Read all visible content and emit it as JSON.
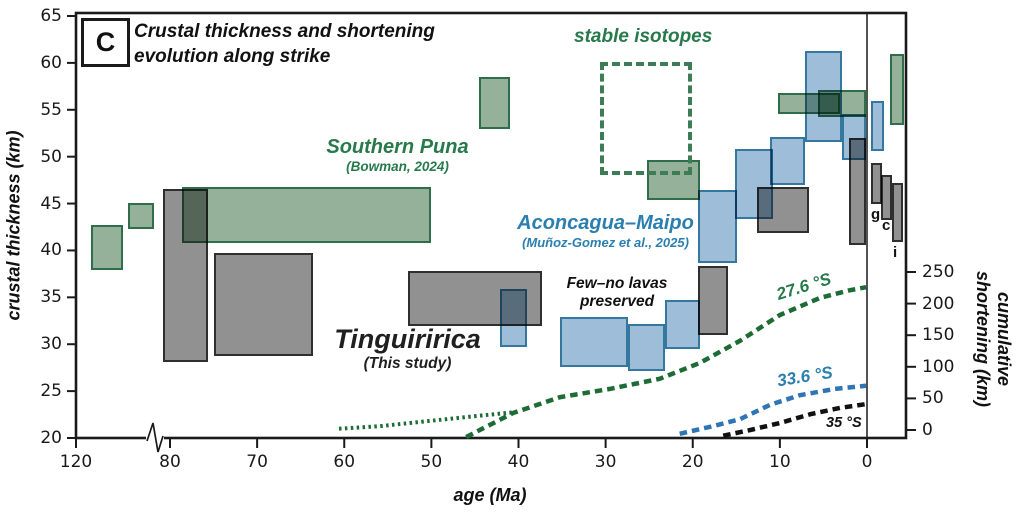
{
  "panel": {
    "label": "C",
    "title_line1": "Crustal thickness and shortening",
    "title_line2": "evolution along strike"
  },
  "axes": {
    "x": {
      "label": "age (Ma)",
      "ticks": [
        120,
        80,
        70,
        60,
        50,
        40,
        30,
        20,
        10,
        0
      ],
      "axis_break_between": [
        120,
        80
      ],
      "zero_line_at": 0
    },
    "y_left": {
      "label": "crustal thickness (km)",
      "ticks": [
        65,
        60,
        55,
        50,
        45,
        40,
        35,
        30,
        25,
        20
      ]
    },
    "y_right": {
      "label_line1": "cumulative",
      "label_line2": "shortening (km)",
      "ticks": [
        250,
        200,
        150,
        100,
        50,
        0
      ]
    }
  },
  "series": {
    "southern_puna": {
      "name": "Southern Puna",
      "ref": "(Bowman, 2024)",
      "fill": "#95b19a",
      "stroke": "#2e6e4b",
      "text_color": "#277a4b"
    },
    "aconcagua": {
      "name": "Aconcagua–Maipo",
      "ref": "(Muñoz-Gomez et al., 2025)",
      "fill": "#9dbdd8",
      "stroke": "#35789f",
      "text_color": "#2b7fae"
    },
    "tinguiririca": {
      "name": "Tinguiririca",
      "ref": "(This study)",
      "fill": "#919191",
      "stroke": "#2f2f2f",
      "text_color": "#1f1f1f"
    }
  },
  "annotations": {
    "stable_isotopes": "stable isotopes",
    "few_no_lavas_line1": "Few–no lavas",
    "few_no_lavas_line2": "preserved",
    "curve_label_puna": "27.6 °S",
    "curve_label_aconcagua": "33.6 °S",
    "curve_label_35": "35 °S",
    "modern_box_labels": [
      "g",
      "c",
      "i"
    ]
  },
  "chart_data": {
    "type": "box-ranges with cumulative-shortening dashed lines",
    "x_axis": {
      "label": "age (Ma)",
      "range": [
        120,
        0
      ],
      "broken_segment": [
        120,
        80
      ],
      "note": "boxes plotted right of the 0 Ma line are present-day estimates (negative age values)"
    },
    "y_left_axis": {
      "label": "crustal thickness (km)",
      "range": [
        20,
        65
      ]
    },
    "y_right_axis": {
      "label": "cumulative shortening (km)",
      "range": [
        0,
        250
      ]
    },
    "boxes": {
      "southern_puna": [
        {
          "age": [
            113.5,
            100
          ],
          "thickness": [
            37.9,
            42.7
          ]
        },
        {
          "age": [
            98,
            87
          ],
          "thickness": [
            42.3,
            45.1
          ]
        },
        {
          "age": [
            78.6,
            50
          ],
          "thickness": [
            40.8,
            46.8
          ]
        },
        {
          "age": [
            44.5,
            41
          ],
          "thickness": [
            53.0,
            58.5
          ]
        },
        {
          "age": [
            25.3,
            19.2
          ],
          "thickness": [
            45.4,
            49.7
          ]
        },
        {
          "age": [
            10.2,
            3.1
          ],
          "thickness": [
            54.5,
            56.8
          ]
        },
        {
          "age": [
            5.6,
            0.1
          ],
          "thickness": [
            54.2,
            57.1
          ]
        },
        {
          "age": [
            -2.6,
            -4.2
          ],
          "thickness": [
            53.4,
            60.9
          ],
          "modern": true
        }
      ],
      "tinguiririca": [
        {
          "age": [
            83,
            75.6
          ],
          "thickness": [
            28.1,
            46.6
          ]
        },
        {
          "age": [
            75,
            63.6
          ],
          "thickness": [
            28.7,
            39.7
          ]
        },
        {
          "age": [
            52.7,
            37.3
          ],
          "thickness": [
            31.9,
            37.8
          ]
        },
        {
          "age": [
            19.4,
            16
          ],
          "thickness": [
            31.0,
            38.3
          ]
        },
        {
          "age": [
            12.6,
            6.7
          ],
          "thickness": [
            41.9,
            46.8
          ]
        },
        {
          "age": [
            2.1,
            0.1
          ],
          "thickness": [
            40.6,
            52.0
          ]
        },
        {
          "age": [
            -0.5,
            -1.7
          ],
          "thickness": [
            44.9,
            49.3
          ],
          "modern": true,
          "label": "g"
        },
        {
          "age": [
            -1.6,
            -2.9
          ],
          "thickness": [
            43.3,
            48.1
          ],
          "modern": true,
          "label": "c"
        },
        {
          "age": [
            -2.9,
            -4.1
          ],
          "thickness": [
            40.9,
            47.2
          ],
          "modern": true,
          "label": "i"
        }
      ],
      "aconcagua": [
        {
          "age": [
            42.1,
            39
          ],
          "thickness": [
            29.7,
            35.9
          ]
        },
        {
          "age": [
            35.2,
            27.4
          ],
          "thickness": [
            27.6,
            32.9
          ]
        },
        {
          "age": [
            27.4,
            23.2
          ],
          "thickness": [
            27.1,
            32.2
          ]
        },
        {
          "age": [
            23.2,
            19.2
          ],
          "thickness": [
            29.5,
            34.7
          ]
        },
        {
          "age": [
            19.4,
            14.9
          ],
          "thickness": [
            38.7,
            46.5
          ]
        },
        {
          "age": [
            15.2,
            10.8
          ],
          "thickness": [
            43.3,
            50.8
          ]
        },
        {
          "age": [
            11.1,
            7.1
          ],
          "thickness": [
            47.0,
            52.1
          ]
        },
        {
          "age": [
            7.1,
            2.9
          ],
          "thickness": [
            51.6,
            61.3
          ]
        },
        {
          "age": [
            2.9,
            0.1
          ],
          "thickness": [
            49.7,
            54.6
          ]
        },
        {
          "age": [
            -0.5,
            -2.0
          ],
          "thickness": [
            50.6,
            55.9
          ],
          "modern": true
        }
      ]
    },
    "stable_isotopes_box": {
      "age": [
        30.7,
        20.1
      ],
      "thickness": [
        48.0,
        60.1
      ]
    },
    "shortening_curves": [
      {
        "name": "Southern Puna uncertain (dotted)",
        "latitude": "27.6 °S",
        "color": "#1d6b35",
        "style": "dotted",
        "points": [
          [
            60.6,
            2
          ],
          [
            55.9,
            6
          ],
          [
            50.5,
            14
          ],
          [
            45.6,
            21
          ],
          [
            40.6,
            28
          ]
        ]
      },
      {
        "name": "Southern Puna 27.6 °S",
        "latitude": "27.6 °S",
        "color": "#1d6b35",
        "style": "dashed",
        "points": [
          [
            46,
            -11
          ],
          [
            40.6,
            27
          ],
          [
            35.2,
            52
          ],
          [
            29.5,
            65
          ],
          [
            23.8,
            81
          ],
          [
            19.2,
            106
          ],
          [
            14.6,
            141
          ],
          [
            10,
            182
          ],
          [
            5.4,
            209
          ],
          [
            2,
            221
          ],
          [
            0.1,
            226
          ]
        ]
      },
      {
        "name": "Aconcagua–Maipo 33.6 °S",
        "latitude": "33.6 °S",
        "color": "#2e75b5",
        "style": "dashed",
        "points": [
          [
            21.5,
            -6
          ],
          [
            18,
            5
          ],
          [
            14.6,
            17
          ],
          [
            11.1,
            40
          ],
          [
            7.7,
            55
          ],
          [
            3.7,
            65
          ],
          [
            0.1,
            70
          ]
        ]
      },
      {
        "name": "35 °S",
        "latitude": "35 °S",
        "color": "#111111",
        "style": "dashed",
        "points": [
          [
            16.5,
            -9
          ],
          [
            13.4,
            0
          ],
          [
            10,
            11
          ],
          [
            6.5,
            25
          ],
          [
            3.1,
            35
          ],
          [
            0.1,
            41
          ]
        ]
      }
    ]
  }
}
